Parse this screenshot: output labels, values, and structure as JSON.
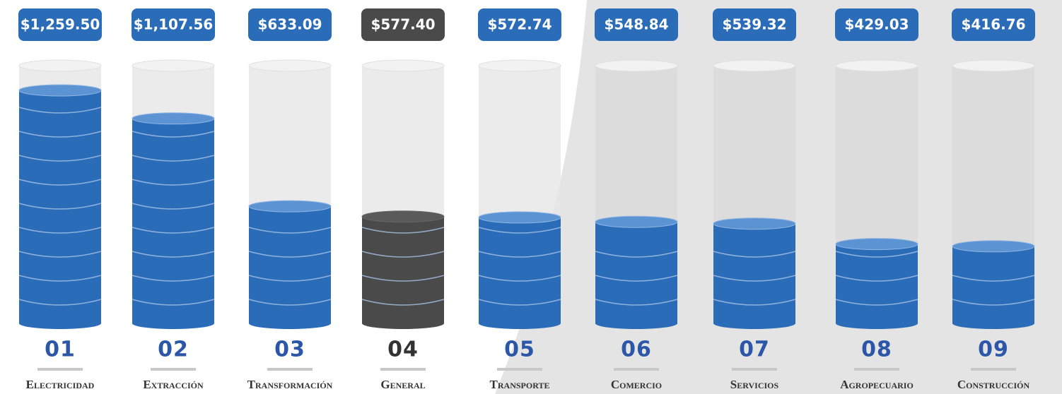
{
  "chart_data": {
    "type": "bar",
    "categories": [
      "Electricidad",
      "Extracción",
      "Transformación",
      "General",
      "Transporte",
      "Comercio",
      "Servicios",
      "Agropecuario",
      "Construcción"
    ],
    "ranks": [
      "01",
      "02",
      "03",
      "04",
      "05",
      "06",
      "07",
      "08",
      "09"
    ],
    "values": [
      1259.5,
      1107.56,
      633.09,
      577.4,
      572.74,
      548.84,
      539.32,
      429.03,
      416.76
    ],
    "value_labels": [
      "$1,259.50",
      "$1,107.56",
      "$633.09",
      "$577.40",
      "$572.74",
      "$548.84",
      "$539.32",
      "$429.03",
      "$416.76"
    ],
    "colors": [
      "#2a6cb8",
      "#2a6cb8",
      "#2a6cb8",
      "#4a4a4a",
      "#2a6cb8",
      "#2a6cb8",
      "#2a6cb8",
      "#2a6cb8",
      "#2a6cb8"
    ]
  }
}
